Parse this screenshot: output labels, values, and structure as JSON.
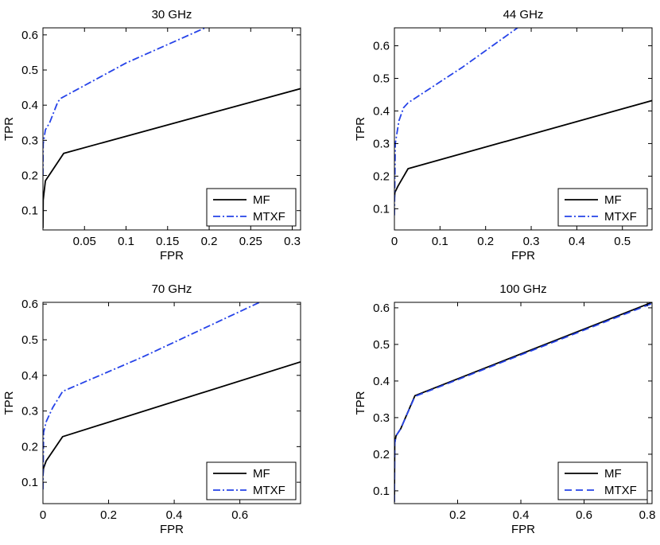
{
  "chart_data": [
    {
      "type": "line",
      "title": "30 GHz",
      "xlabel": "FPR",
      "ylabel": "TPR",
      "xlim": [
        0,
        0.31
      ],
      "ylim": [
        0.045,
        0.62
      ],
      "xticks": [
        0.05,
        0.1,
        0.15,
        0.2,
        0.25,
        0.3
      ],
      "xtick_labels": [
        "0.05",
        "0.1",
        "0.15",
        "0.2",
        "0.25",
        "0.3"
      ],
      "yticks": [
        0.1,
        0.2,
        0.3,
        0.4,
        0.5,
        0.6
      ],
      "ytick_labels": [
        "0.1",
        "0.2",
        "0.3",
        "0.4",
        "0.5",
        "0.6"
      ],
      "legend_position": "bottom-right",
      "series": [
        {
          "name": "MF",
          "color": "#000000",
          "style": "solid",
          "x": [
            0,
            0.0003,
            0.003,
            0.025,
            0.31
          ],
          "y": [
            0.05,
            0.13,
            0.185,
            0.263,
            0.447
          ]
        },
        {
          "name": "MTXF",
          "color": "#2643e8",
          "style": "dashdot",
          "x": [
            0,
            0.0003,
            0.003,
            0.008,
            0.018,
            0.022,
            0.1,
            0.2
          ],
          "y": [
            0.2,
            0.29,
            0.33,
            0.35,
            0.41,
            0.42,
            0.52,
            0.625
          ]
        }
      ]
    },
    {
      "type": "line",
      "title": "44 GHz",
      "xlabel": "FPR",
      "ylabel": "TPR",
      "xlim": [
        0,
        0.565
      ],
      "ylim": [
        0.035,
        0.655
      ],
      "xticks": [
        0,
        0.1,
        0.2,
        0.3,
        0.4,
        0.5
      ],
      "xtick_labels": [
        "0",
        "0.1",
        "0.2",
        "0.3",
        "0.4",
        "0.5"
      ],
      "yticks": [
        0.1,
        0.2,
        0.3,
        0.4,
        0.5,
        0.6
      ],
      "ytick_labels": [
        "0.1",
        "0.2",
        "0.3",
        "0.4",
        "0.5",
        "0.6"
      ],
      "legend_position": "bottom-right",
      "series": [
        {
          "name": "MF",
          "color": "#000000",
          "style": "solid",
          "x": [
            0,
            0.001,
            0.008,
            0.03,
            0.565
          ],
          "y": [
            0.13,
            0.15,
            0.17,
            0.223,
            0.432
          ]
        },
        {
          "name": "MTXF",
          "color": "#2643e8",
          "style": "dashdot",
          "x": [
            0,
            0.002,
            0.01,
            0.02,
            0.03,
            0.15,
            0.27
          ],
          "y": [
            0.08,
            0.3,
            0.37,
            0.41,
            0.425,
            0.535,
            0.655
          ]
        }
      ]
    },
    {
      "type": "line",
      "title": "70 GHz",
      "xlabel": "FPR",
      "ylabel": "TPR",
      "xlim": [
        0,
        0.785
      ],
      "ylim": [
        0.04,
        0.605
      ],
      "xticks": [
        0,
        0.2,
        0.4,
        0.6
      ],
      "xtick_labels": [
        "0",
        "0.2",
        "0.4",
        "0.6"
      ],
      "yticks": [
        0.1,
        0.2,
        0.3,
        0.4,
        0.5,
        0.6
      ],
      "ytick_labels": [
        "0.1",
        "0.2",
        "0.3",
        "0.4",
        "0.5",
        "0.6"
      ],
      "legend_position": "bottom-right",
      "series": [
        {
          "name": "MF",
          "color": "#000000",
          "style": "solid",
          "x": [
            0,
            0.002,
            0.01,
            0.06,
            0.785
          ],
          "y": [
            0.12,
            0.14,
            0.16,
            0.228,
            0.438
          ]
        },
        {
          "name": "MTXF",
          "color": "#2643e8",
          "style": "dashdot",
          "x": [
            0,
            0.002,
            0.01,
            0.03,
            0.06,
            0.3,
            0.66
          ],
          "y": [
            0.08,
            0.24,
            0.27,
            0.31,
            0.355,
            0.45,
            0.605
          ]
        }
      ]
    },
    {
      "type": "line",
      "title": "100 GHz",
      "xlabel": "FPR",
      "ylabel": "TPR",
      "xlim": [
        0,
        0.815
      ],
      "ylim": [
        0.065,
        0.615
      ],
      "xticks": [
        0.2,
        0.4,
        0.6,
        0.8
      ],
      "xtick_labels": [
        "0.2",
        "0.4",
        "0.6",
        "0.8"
      ],
      "yticks": [
        0.1,
        0.2,
        0.3,
        0.4,
        0.5,
        0.6
      ],
      "ytick_labels": [
        "0.1",
        "0.2",
        "0.3",
        "0.4",
        "0.5",
        "0.6"
      ],
      "legend_position": "bottom-right",
      "series": [
        {
          "name": "MF",
          "color": "#000000",
          "style": "solid",
          "x": [
            0,
            0.001,
            0.005,
            0.02,
            0.065,
            0.815
          ],
          "y": [
            0.07,
            0.23,
            0.25,
            0.27,
            0.36,
            0.615
          ]
        },
        {
          "name": "MTXF",
          "color": "#2643e8",
          "style": "dashed",
          "x": [
            0,
            0.001,
            0.005,
            0.02,
            0.065,
            0.815
          ],
          "y": [
            0.07,
            0.23,
            0.25,
            0.27,
            0.358,
            0.612
          ]
        }
      ]
    }
  ]
}
